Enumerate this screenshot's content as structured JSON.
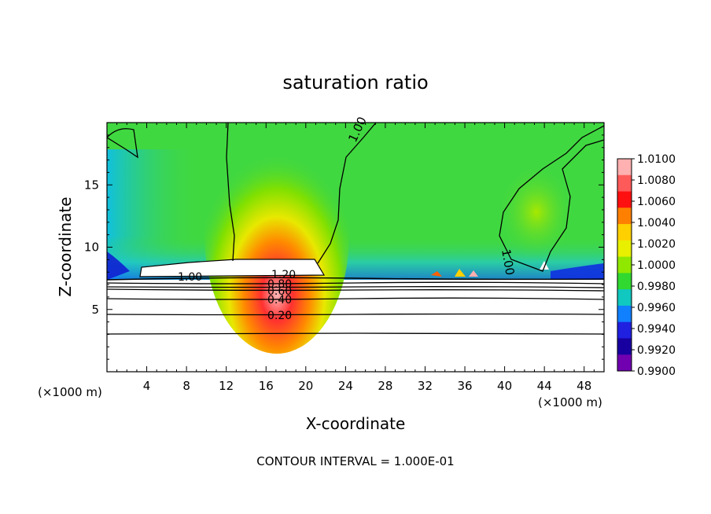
{
  "chart_data": {
    "type": "heatmap",
    "title": "saturation ratio",
    "xlabel": "X-coordinate",
    "ylabel": "Z-coordinate",
    "x_units": "(×1000 m)",
    "z_units": "(×1000 m)",
    "xlim": [
      0,
      50
    ],
    "ylim": [
      0,
      20
    ],
    "x_ticks": [
      "4",
      "8",
      "12",
      "16",
      "20",
      "24",
      "28",
      "32",
      "36",
      "40",
      "44",
      "48"
    ],
    "y_ticks": [
      "5",
      "10",
      "15"
    ],
    "colorbar": {
      "labels": [
        "1.0100",
        "1.0080",
        "1.0060",
        "1.0040",
        "1.0020",
        "1.0000",
        "0.9980",
        "0.9960",
        "0.9940",
        "0.9920",
        "0.9900"
      ],
      "colors": [
        "#ffb0b0",
        "#ff5a5a",
        "#ff1010",
        "#ff8000",
        "#ffd000",
        "#e8f000",
        "#90e800",
        "#30d830",
        "#10c8c0",
        "#1080ff",
        "#2020e0",
        "#1800a0",
        "#7000b0"
      ]
    },
    "contour_labels": [
      "1.00",
      "1.00",
      "1.00",
      "1.20",
      "0.80",
      "0.60",
      "0.40",
      "0.20"
    ],
    "footnote": "CONTOUR INTERVAL = 1.000E-01"
  }
}
